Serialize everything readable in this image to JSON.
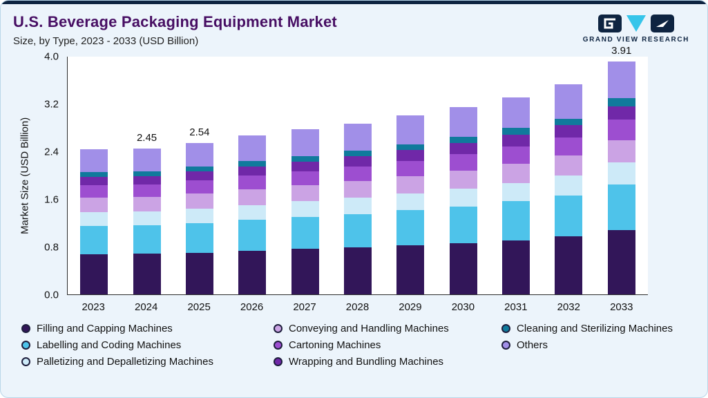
{
  "header": {
    "title": "U.S. Beverage Packaging Equipment Market",
    "subtitle": "Size, by Type, 2023 - 2033 (USD Billion)",
    "logo_text": "GRAND VIEW RESEARCH"
  },
  "colors": {
    "card_bg": "#ecf4fb",
    "card_border": "#b9d6e9",
    "top_strip": "#0e2441",
    "title": "#470e63",
    "axis": "#2b2b2b",
    "logo_navy": "#0e2441",
    "logo_cyan": "#36c5ea"
  },
  "chart_data": {
    "type": "bar",
    "stacked": true,
    "title": "U.S. Beverage Packaging Equipment Market",
    "subtitle": "Size, by Type, 2023 - 2033 (USD Billion)",
    "xlabel": "",
    "ylabel": "Market Size (USD Billion)",
    "ylim": [
      0,
      4.0
    ],
    "yticks": [
      "0.0",
      "0.8",
      "1.6",
      "2.4",
      "3.2",
      "4.0"
    ],
    "grid": false,
    "legend_position": "bottom",
    "categories": [
      "2023",
      "2024",
      "2025",
      "2026",
      "2027",
      "2028",
      "2029",
      "2030",
      "2031",
      "2032",
      "2033"
    ],
    "series": [
      {
        "name": "Filling and Capping Machines",
        "color": "#321659",
        "values": [
          0.67,
          0.68,
          0.7,
          0.73,
          0.76,
          0.79,
          0.82,
          0.86,
          0.91,
          0.97,
          1.08
        ]
      },
      {
        "name": "Labelling and Coding Machines",
        "color": "#4ec3ea",
        "values": [
          0.48,
          0.48,
          0.5,
          0.52,
          0.54,
          0.56,
          0.59,
          0.61,
          0.65,
          0.69,
          0.76
        ]
      },
      {
        "name": "Palletizing and Depalletizing Machines",
        "color": "#cdeaf8",
        "values": [
          0.23,
          0.23,
          0.24,
          0.25,
          0.26,
          0.27,
          0.28,
          0.3,
          0.31,
          0.33,
          0.37
        ]
      },
      {
        "name": "Conveying and Handling Machines",
        "color": "#cba3e4",
        "values": [
          0.24,
          0.24,
          0.25,
          0.26,
          0.27,
          0.28,
          0.29,
          0.31,
          0.32,
          0.34,
          0.38
        ]
      },
      {
        "name": "Cartoning Machines",
        "color": "#9d4ed0",
        "values": [
          0.21,
          0.21,
          0.22,
          0.23,
          0.24,
          0.25,
          0.26,
          0.27,
          0.29,
          0.3,
          0.34
        ]
      },
      {
        "name": "Wrapping and Bundling Machines",
        "color": "#7028a8",
        "values": [
          0.14,
          0.14,
          0.15,
          0.16,
          0.16,
          0.17,
          0.18,
          0.19,
          0.2,
          0.21,
          0.23
        ]
      },
      {
        "name": "Cleaning and Sterilizing Machines",
        "color": "#107a9c",
        "values": [
          0.08,
          0.08,
          0.08,
          0.09,
          0.09,
          0.09,
          0.1,
          0.1,
          0.11,
          0.11,
          0.13
        ]
      },
      {
        "name": "Others",
        "color": "#a18fe8",
        "values": [
          0.38,
          0.39,
          0.4,
          0.43,
          0.45,
          0.46,
          0.48,
          0.5,
          0.52,
          0.57,
          0.62
        ]
      }
    ],
    "bar_total_labels": {
      "2024": "2.45",
      "2025": "2.54",
      "2033": "3.91"
    }
  },
  "legend": {
    "items": [
      {
        "label": "Filling and Capping Machines",
        "color": "#321659"
      },
      {
        "label": "Conveying and Handling Machines",
        "color": "#cba3e4"
      },
      {
        "label": "Cleaning and Sterilizing Machines",
        "color": "#107a9c"
      },
      {
        "label": "Labelling and Coding Machines",
        "color": "#4ec3ea"
      },
      {
        "label": "Cartoning Machines",
        "color": "#9d4ed0"
      },
      {
        "label": "Others",
        "color": "#a18fe8"
      },
      {
        "label": "Palletizing and Depalletizing Machines",
        "color": "#cdeaf8"
      },
      {
        "label": "Wrapping and Bundling Machines",
        "color": "#7028a8"
      }
    ]
  }
}
